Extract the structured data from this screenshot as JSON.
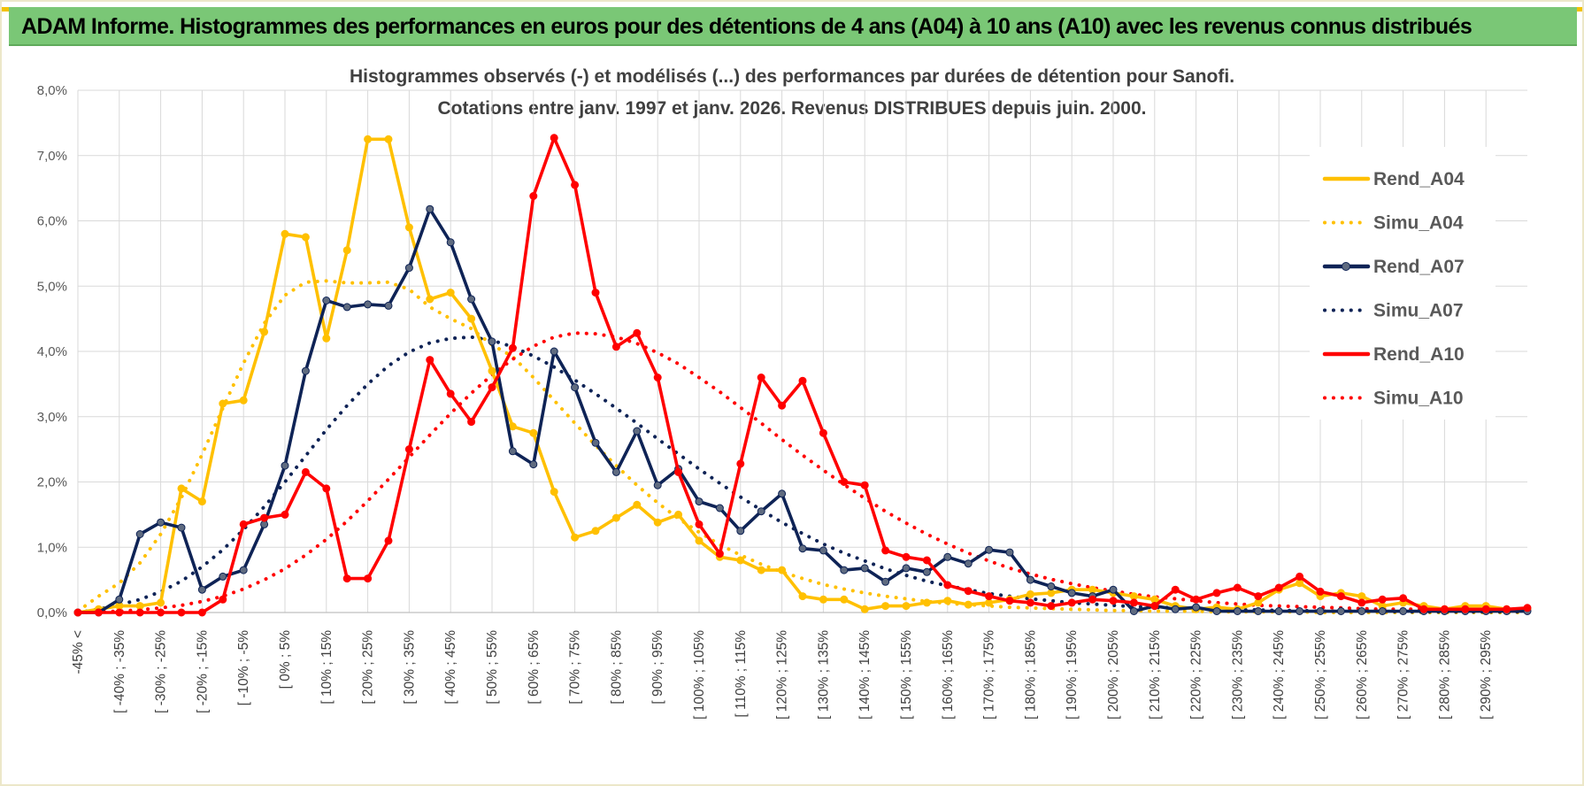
{
  "header": {
    "title": "ADAM Informe. Histogrammes des performances en euros pour des détentions de 4 ans (A04) à 10 ans (A10) avec les revenus connus distribués"
  },
  "chart_data": {
    "type": "line",
    "title": "ADAM Informe. Histogrammes des performances en euros pour des détentions de 4 ans (A04) à 10 ans (A10) avec les revenus connus distribués",
    "subtitle": [
      "Histogrammes observés (-) et modélisés (...) des performances par durées de détention pour Sanofi.",
      "Cotations entre janv. 1997 et janv. 2026. Revenus DISTRIBUES depuis juin. 2000."
    ],
    "xlabel": "",
    "ylabel": "",
    "ylim": [
      0,
      8
    ],
    "y_ticks": [
      "0,0%",
      "1,0%",
      "2,0%",
      "3,0%",
      "4,0%",
      "5,0%",
      "6,0%",
      "7,0%",
      "8,0%"
    ],
    "x_labels": [
      "-45% <",
      "[ -40% ; -35%",
      "[ -30% ; -25%",
      "[ -20% ; -15%",
      "[ -10% ; -5%",
      "[ 0% ; 5%",
      "[ 10% ; 15%",
      "[ 20% ; 25%",
      "[ 30% ; 35%",
      "[ 40% ; 45%",
      "[ 50% ; 55%",
      "[ 60% ; 65%",
      "[ 70% ; 75%",
      "[ 80% ; 85%",
      "[ 90% ; 95%",
      "[ 100% ; 105%",
      "[ 110% ; 115%",
      "[ 120% ; 125%",
      "[ 130% ; 135%",
      "[ 140% ; 145%",
      "[ 150% ; 155%",
      "[ 160% ; 165%",
      "[ 170% ; 175%",
      "[ 180% ; 185%",
      "[ 190% ; 195%",
      "[ 200% ; 205%",
      "[ 210% ; 215%",
      "[ 220% ; 225%",
      "[ 230% ; 235%",
      "[ 240% ; 245%",
      "[ 250% ; 255%",
      "[ 260% ; 265%",
      "[ 270% ; 275%",
      "[ 280% ; 285%",
      "[ 290% ; 295%"
    ],
    "n_bins": 71,
    "legend_position": "right",
    "grid": true,
    "series": [
      {
        "name": "Rend_A04",
        "color": "#ffc000",
        "style": "solid",
        "values": [
          0,
          0.05,
          0.1,
          0.1,
          0.15,
          1.9,
          1.7,
          3.2,
          3.25,
          4.3,
          5.8,
          5.75,
          4.2,
          5.55,
          7.25,
          7.25,
          5.9,
          4.8,
          4.9,
          4.5,
          3.7,
          2.85,
          2.75,
          1.85,
          1.15,
          1.25,
          1.45,
          1.65,
          1.38,
          1.5,
          1.1,
          0.85,
          0.8,
          0.65,
          0.65,
          0.25,
          0.2,
          0.2,
          0.05,
          0.1,
          0.1,
          0.15,
          0.18,
          0.12,
          0.15,
          0.2,
          0.28,
          0.3,
          0.35,
          0.35,
          0.3,
          0.25,
          0.2,
          0.1,
          0.05,
          0.08,
          0.05,
          0.15,
          0.35,
          0.45,
          0.25,
          0.3,
          0.25,
          0.1,
          0.15,
          0.1,
          0.05,
          0.1,
          0.1,
          0.05,
          0.05
        ]
      },
      {
        "name": "Simu_A04",
        "color": "#ffc000",
        "style": "dotted",
        "values": [
          0.02,
          0.25,
          0.45,
          0.76,
          1.2,
          1.76,
          2.42,
          3.13,
          3.82,
          4.43,
          4.86,
          5.06,
          5.08,
          5.05,
          5.05,
          5.06,
          4.95,
          4.68,
          4.5,
          4.35,
          4.1,
          3.92,
          3.6,
          3.25,
          2.9,
          2.56,
          2.25,
          1.95,
          1.68,
          1.44,
          1.23,
          1.04,
          0.88,
          0.74,
          0.62,
          0.52,
          0.43,
          0.36,
          0.3,
          0.25,
          0.21,
          0.17,
          0.14,
          0.12,
          0.1,
          0.08,
          0.07,
          0.06,
          0.05,
          0.04,
          0.03,
          0.03,
          0.02,
          0.02,
          0.02,
          0.01,
          0.01,
          0.01,
          0.01,
          0.01,
          0,
          0,
          0,
          0,
          0,
          0,
          0,
          0,
          0,
          0,
          0
        ]
      },
      {
        "name": "Rend_A07",
        "color": "#0e2356",
        "style": "solid",
        "values": [
          0,
          0,
          0.2,
          1.2,
          1.38,
          1.3,
          0.35,
          0.55,
          0.65,
          1.35,
          2.25,
          3.7,
          4.78,
          4.68,
          4.72,
          4.7,
          5.28,
          6.18,
          5.67,
          4.8,
          4.15,
          2.47,
          2.27,
          4.0,
          3.45,
          2.6,
          2.15,
          2.78,
          1.95,
          2.2,
          1.7,
          1.6,
          1.25,
          1.55,
          1.82,
          0.98,
          0.95,
          0.65,
          0.68,
          0.47,
          0.68,
          0.62,
          0.85,
          0.75,
          0.96,
          0.92,
          0.5,
          0.4,
          0.3,
          0.25,
          0.35,
          0.02,
          0.1,
          0.05,
          0.08,
          0.02,
          0.02,
          0.02,
          0.02,
          0.02,
          0.02,
          0.02,
          0.02,
          0.02,
          0.02,
          0.02,
          0.02,
          0.02,
          0.02,
          0.02,
          0.02
        ]
      },
      {
        "name": "Simu_A07",
        "color": "#0e2356",
        "style": "dotted",
        "values": [
          0,
          0.05,
          0.12,
          0.2,
          0.32,
          0.48,
          0.7,
          0.96,
          1.27,
          1.62,
          2.0,
          2.4,
          2.8,
          3.17,
          3.5,
          3.78,
          3.99,
          4.13,
          4.2,
          4.22,
          4.17,
          4.07,
          3.93,
          3.76,
          3.56,
          3.35,
          3.13,
          2.9,
          2.66,
          2.43,
          2.2,
          1.98,
          1.77,
          1.57,
          1.38,
          1.21,
          1.05,
          0.91,
          0.79,
          0.67,
          0.57,
          0.48,
          0.41,
          0.35,
          0.29,
          0.25,
          0.21,
          0.18,
          0.15,
          0.13,
          0.11,
          0.09,
          0.08,
          0.07,
          0.06,
          0.05,
          0.04,
          0.04,
          0.03,
          0.03,
          0.02,
          0.02,
          0.02,
          0.02,
          0.01,
          0.01,
          0.01,
          0.01,
          0.01,
          0.01,
          0.01
        ]
      },
      {
        "name": "Rend_A10",
        "color": "#ff0000",
        "style": "solid",
        "values": [
          0,
          0,
          0,
          0,
          0,
          0,
          0,
          0.2,
          1.35,
          1.45,
          1.5,
          2.15,
          1.9,
          0.52,
          0.52,
          1.1,
          2.5,
          3.87,
          3.35,
          2.92,
          3.45,
          4.05,
          6.38,
          7.27,
          6.55,
          4.9,
          4.07,
          4.28,
          3.6,
          2.15,
          1.35,
          0.9,
          2.28,
          3.6,
          3.17,
          3.55,
          2.75,
          2.0,
          1.95,
          0.95,
          0.85,
          0.8,
          0.42,
          0.33,
          0.25,
          0.18,
          0.15,
          0.1,
          0.15,
          0.2,
          0.18,
          0.15,
          0.1,
          0.35,
          0.2,
          0.3,
          0.38,
          0.25,
          0.38,
          0.55,
          0.32,
          0.25,
          0.15,
          0.2,
          0.22,
          0.05,
          0.05,
          0.05,
          0.05,
          0.05,
          0.07
        ]
      },
      {
        "name": "Simu_A10",
        "color": "#ff0000",
        "style": "dotted",
        "values": [
          0,
          0.01,
          0.02,
          0.04,
          0.07,
          0.11,
          0.17,
          0.25,
          0.36,
          0.5,
          0.67,
          0.88,
          1.12,
          1.4,
          1.71,
          2.04,
          2.38,
          2.72,
          3.05,
          3.36,
          3.64,
          3.88,
          4.08,
          4.22,
          4.28,
          4.27,
          4.22,
          4.12,
          3.98,
          3.81,
          3.6,
          3.38,
          3.14,
          2.9,
          2.65,
          2.41,
          2.18,
          1.96,
          1.75,
          1.55,
          1.37,
          1.2,
          1.05,
          0.91,
          0.79,
          0.68,
          0.59,
          0.51,
          0.44,
          0.38,
          0.33,
          0.28,
          0.24,
          0.21,
          0.18,
          0.15,
          0.13,
          0.11,
          0.1,
          0.09,
          0.08,
          0.07,
          0.06,
          0.05,
          0.05,
          0.05,
          0.04,
          0.04,
          0.04,
          0.04,
          0.04
        ]
      }
    ]
  }
}
